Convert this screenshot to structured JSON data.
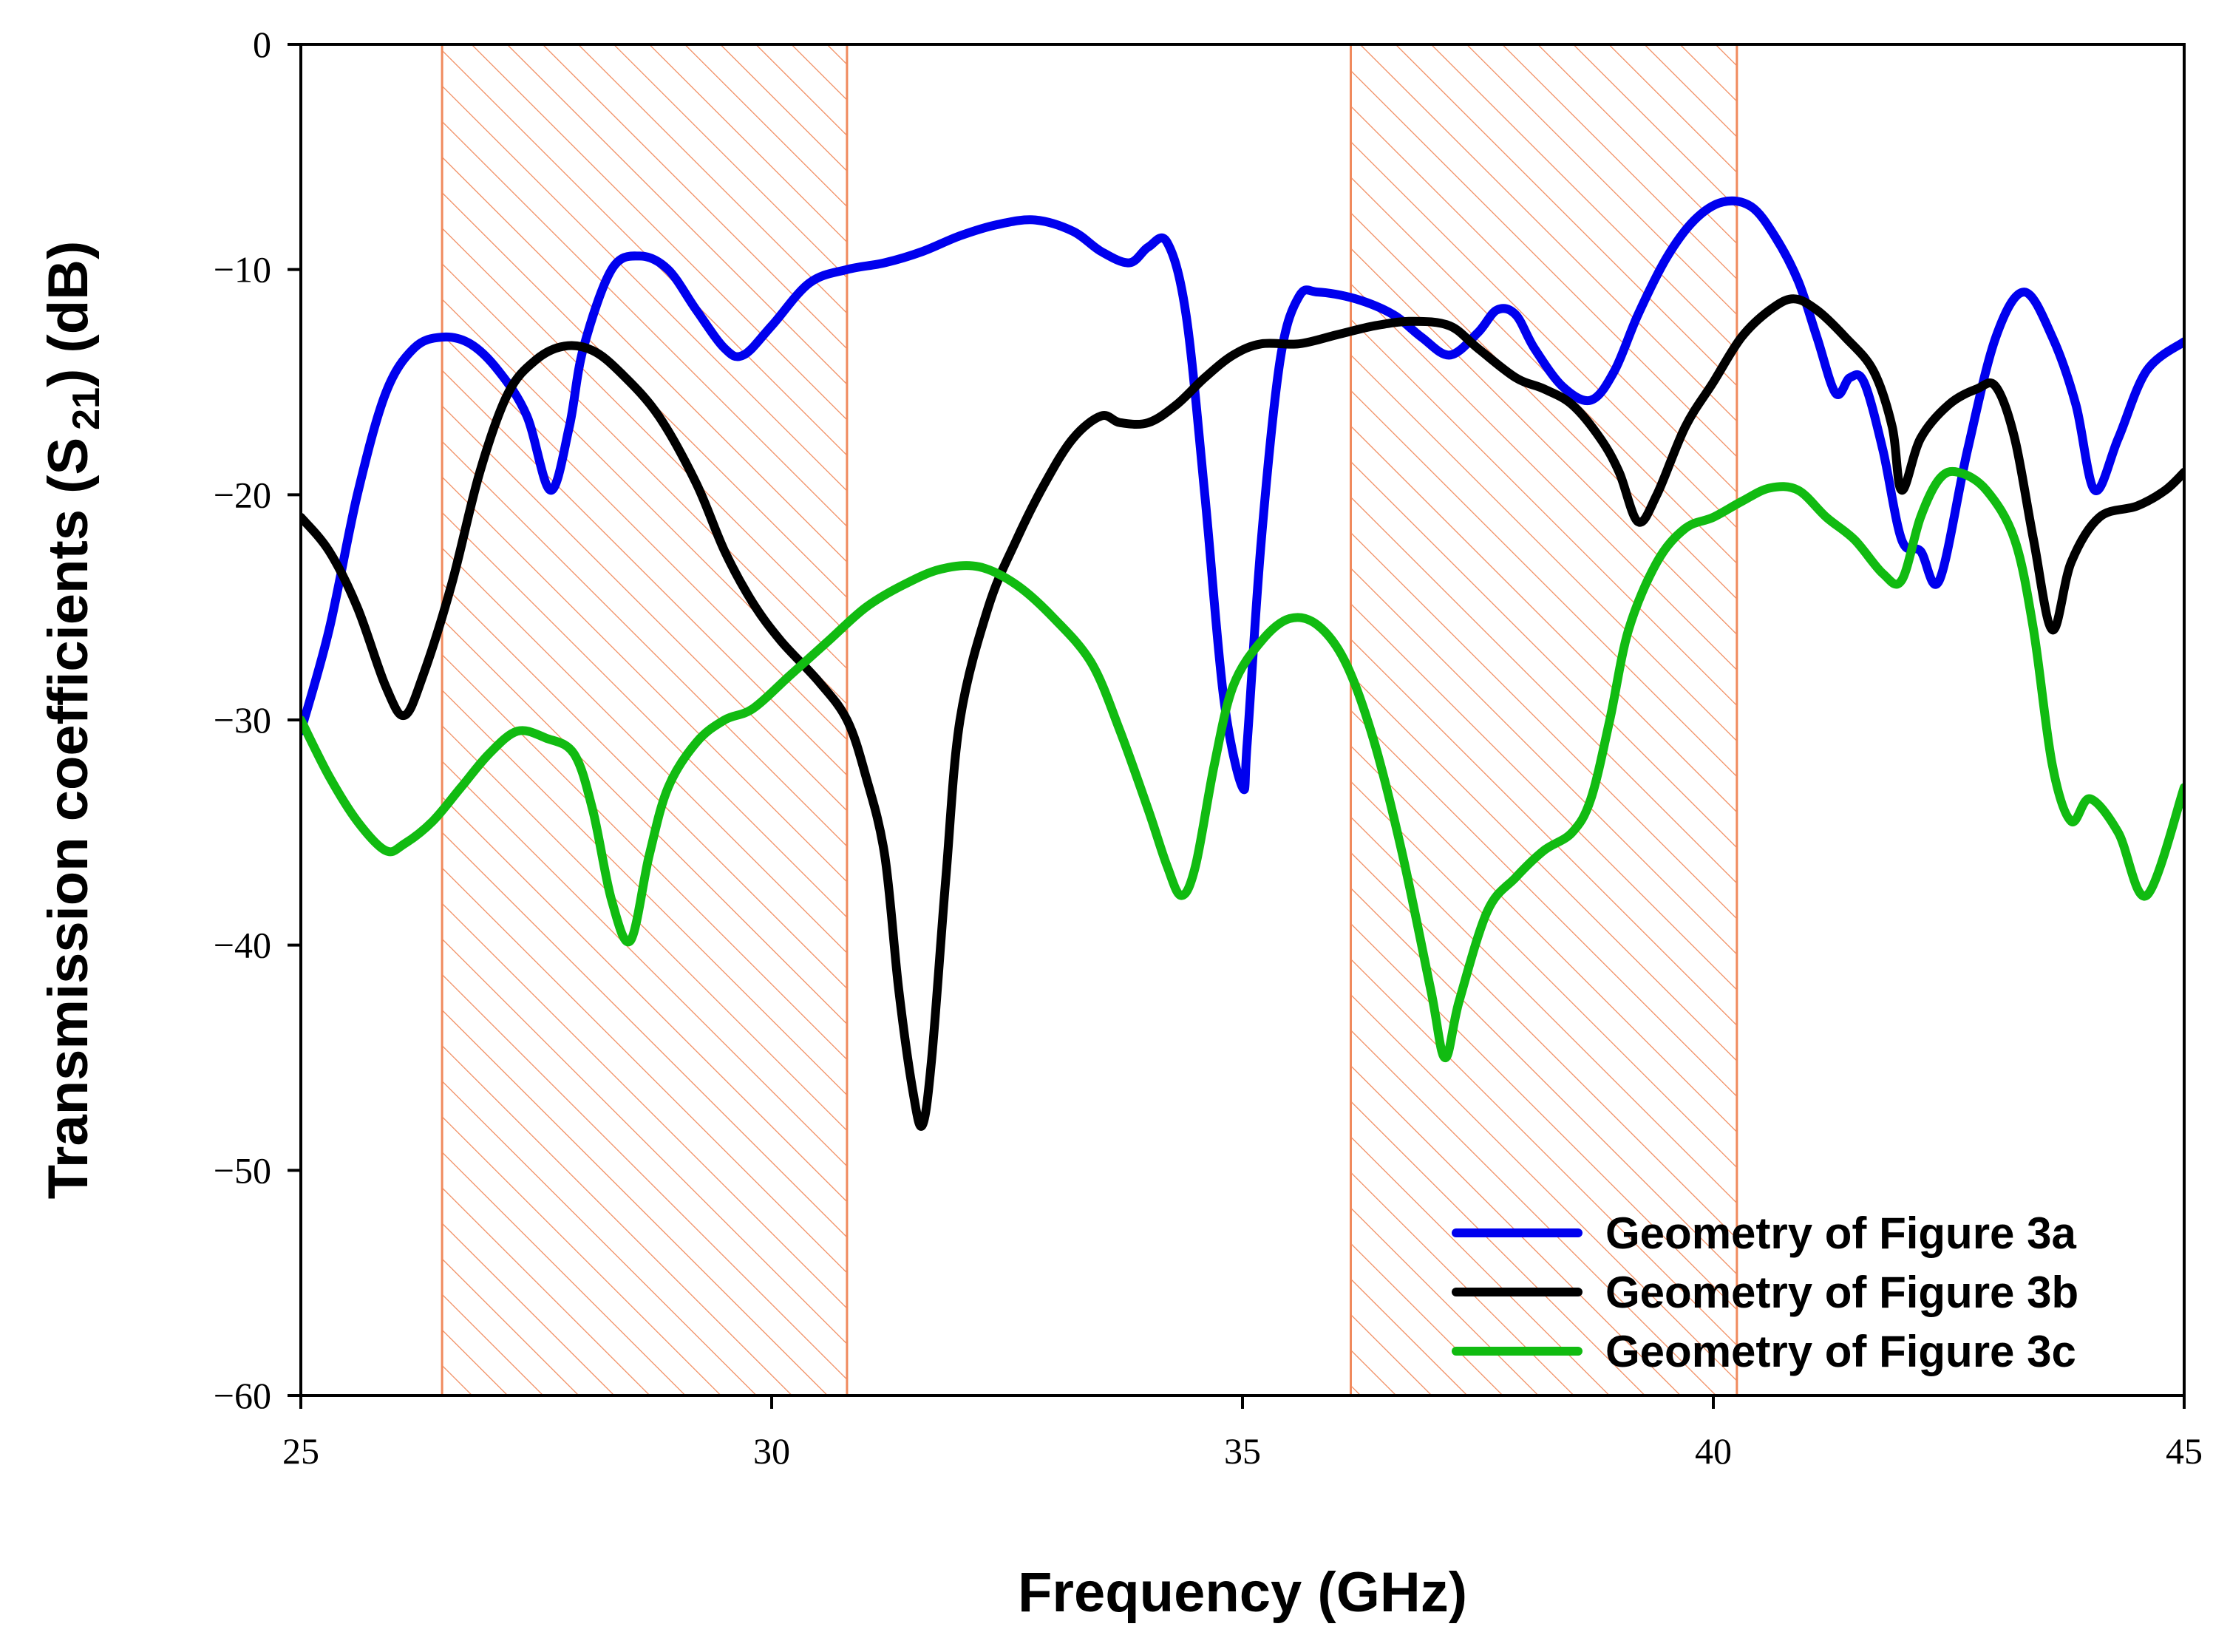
{
  "chart_data": {
    "type": "line",
    "title": "",
    "xlabel": "Frequency (GHz)",
    "ylabel": "Transmission coefficients (S",
    "ylabel_subscript": "21",
    "ylabel_suffix": ") (dB)",
    "xlim": [
      25,
      45
    ],
    "ylim": [
      -60,
      0
    ],
    "xticks": [
      25,
      30,
      35,
      40,
      45
    ],
    "yticks": [
      0,
      -10,
      -20,
      -30,
      -40,
      -50,
      -60
    ],
    "xtick_labels": [
      "25",
      "30",
      "35",
      "40",
      "45"
    ],
    "ytick_labels": [
      "0",
      "−10",
      "−20",
      "−30",
      "−40",
      "−50",
      "−60"
    ],
    "grid": false,
    "legend_position": "bottom-right",
    "shaded_bands": [
      {
        "x_start": 26.5,
        "x_end": 30.8,
        "color": "#F08A5D",
        "pattern": "diagonal-hatch"
      },
      {
        "x_start": 36.15,
        "x_end": 40.25,
        "color": "#F08A5D",
        "pattern": "diagonal-hatch"
      }
    ],
    "series": [
      {
        "name": "Geometry of Figure 3a",
        "color": "#0000EE",
        "x": [
          25.0,
          25.3,
          25.6,
          25.9,
          26.2,
          26.5,
          26.8,
          27.1,
          27.4,
          27.65,
          27.85,
          28.0,
          28.3,
          28.6,
          28.9,
          29.2,
          29.5,
          29.7,
          30.0,
          30.4,
          30.8,
          31.2,
          31.6,
          32.0,
          32.4,
          32.8,
          33.2,
          33.5,
          33.8,
          34.0,
          34.2,
          34.4,
          34.6,
          34.8,
          35.0,
          35.05,
          35.2,
          35.4,
          35.6,
          35.8,
          36.2,
          36.6,
          36.9,
          37.2,
          37.5,
          37.7,
          37.9,
          38.1,
          38.4,
          38.7,
          38.95,
          39.2,
          39.5,
          39.8,
          40.1,
          40.4,
          40.65,
          40.9,
          41.1,
          41.3,
          41.45,
          41.6,
          41.8,
          42.0,
          42.2,
          42.4,
          42.7,
          43.0,
          43.3,
          43.6,
          43.85,
          44.05,
          44.3,
          44.6,
          45.0
        ],
        "values": [
          -30.5,
          -26.0,
          -20.0,
          -15.5,
          -13.5,
          -13.0,
          -13.3,
          -14.5,
          -16.5,
          -19.8,
          -17.0,
          -13.5,
          -10.0,
          -9.4,
          -10.0,
          -11.8,
          -13.5,
          -13.8,
          -12.5,
          -10.6,
          -10.0,
          -9.7,
          -9.2,
          -8.5,
          -8.0,
          -7.8,
          -8.3,
          -9.2,
          -9.7,
          -9.0,
          -8.8,
          -12.0,
          -20.0,
          -29.0,
          -33.0,
          -31.0,
          -22.0,
          -14.0,
          -11.2,
          -11.0,
          -11.3,
          -12.0,
          -13.0,
          -13.8,
          -12.8,
          -11.8,
          -12.0,
          -13.5,
          -15.2,
          -15.8,
          -14.5,
          -12.0,
          -9.5,
          -7.8,
          -7.0,
          -7.2,
          -8.5,
          -10.5,
          -13.0,
          -15.5,
          -14.8,
          -15.0,
          -18.0,
          -22.0,
          -22.5,
          -23.8,
          -18.0,
          -13.0,
          -11.0,
          -13.0,
          -16.0,
          -19.8,
          -17.5,
          -14.5,
          -13.2
        ]
      },
      {
        "name": "Geometry of Figure 3b",
        "color": "#000000",
        "x": [
          25.0,
          25.3,
          25.6,
          25.9,
          26.1,
          26.3,
          26.6,
          26.9,
          27.2,
          27.5,
          27.8,
          28.1,
          28.4,
          28.8,
          29.2,
          29.5,
          29.8,
          30.1,
          30.5,
          30.8,
          31.0,
          31.2,
          31.35,
          31.5,
          31.6,
          31.7,
          31.85,
          32.0,
          32.3,
          32.6,
          32.9,
          33.2,
          33.5,
          33.7,
          34.0,
          34.3,
          34.6,
          34.9,
          35.2,
          35.6,
          36.0,
          36.4,
          36.8,
          37.2,
          37.5,
          37.9,
          38.2,
          38.5,
          38.8,
          39.0,
          39.2,
          39.4,
          39.7,
          40.0,
          40.3,
          40.6,
          40.85,
          41.1,
          41.4,
          41.7,
          41.9,
          42.0,
          42.2,
          42.5,
          42.8,
          43.0,
          43.2,
          43.4,
          43.6,
          43.8,
          44.1,
          44.5,
          44.8,
          45.0
        ],
        "values": [
          -21.0,
          -22.5,
          -25.0,
          -28.5,
          -29.8,
          -28.0,
          -24.0,
          -19.0,
          -15.5,
          -14.0,
          -13.4,
          -13.6,
          -14.6,
          -16.5,
          -19.5,
          -22.5,
          -24.8,
          -26.5,
          -28.3,
          -30.0,
          -32.5,
          -36.0,
          -42.0,
          -46.5,
          -48.0,
          -45.0,
          -37.0,
          -30.0,
          -25.0,
          -22.0,
          -19.5,
          -17.5,
          -16.5,
          -16.8,
          -16.8,
          -16.0,
          -14.8,
          -13.8,
          -13.3,
          -13.3,
          -12.9,
          -12.5,
          -12.3,
          -12.5,
          -13.5,
          -14.8,
          -15.3,
          -16.0,
          -17.5,
          -19.0,
          -21.2,
          -20.0,
          -17.0,
          -15.0,
          -13.0,
          -11.8,
          -11.3,
          -11.8,
          -13.0,
          -14.5,
          -17.0,
          -19.8,
          -17.5,
          -16.0,
          -15.3,
          -15.2,
          -17.5,
          -22.0,
          -26.0,
          -23.0,
          -21.0,
          -20.5,
          -19.8,
          -19.0
        ]
      },
      {
        "name": "Geometry of Figure 3c",
        "color": "#11BB11",
        "x": [
          25.0,
          25.3,
          25.6,
          25.9,
          26.1,
          26.4,
          26.7,
          27.0,
          27.3,
          27.6,
          27.9,
          28.1,
          28.3,
          28.5,
          28.7,
          28.9,
          29.2,
          29.5,
          29.8,
          30.2,
          30.6,
          31.0,
          31.4,
          31.8,
          32.2,
          32.6,
          33.0,
          33.4,
          33.7,
          34.0,
          34.2,
          34.35,
          34.5,
          34.7,
          34.9,
          35.2,
          35.5,
          35.8,
          36.1,
          36.4,
          36.7,
          37.0,
          37.15,
          37.3,
          37.6,
          37.9,
          38.2,
          38.5,
          38.7,
          38.9,
          39.1,
          39.4,
          39.7,
          40.0,
          40.3,
          40.6,
          40.9,
          41.2,
          41.5,
          41.8,
          42.0,
          42.2,
          42.4,
          42.6,
          42.9,
          43.2,
          43.4,
          43.6,
          43.8,
          44.0,
          44.3,
          44.6,
          45.0
        ],
        "values": [
          -30.0,
          -32.5,
          -34.5,
          -35.8,
          -35.5,
          -34.5,
          -33.0,
          -31.5,
          -30.5,
          -30.8,
          -31.5,
          -34.0,
          -38.0,
          -39.8,
          -36.0,
          -33.0,
          -31.0,
          -30.0,
          -29.5,
          -28.0,
          -26.5,
          -25.0,
          -24.0,
          -23.3,
          -23.2,
          -24.0,
          -25.5,
          -27.5,
          -30.5,
          -34.0,
          -36.5,
          -37.8,
          -36.5,
          -32.0,
          -28.5,
          -26.5,
          -25.5,
          -25.8,
          -27.5,
          -31.0,
          -36.0,
          -42.0,
          -45.0,
          -42.5,
          -38.5,
          -37.0,
          -35.8,
          -35.0,
          -33.5,
          -30.0,
          -26.0,
          -23.0,
          -21.5,
          -21.0,
          -20.3,
          -19.7,
          -19.8,
          -21.0,
          -22.0,
          -23.5,
          -23.8,
          -21.0,
          -19.3,
          -19.0,
          -19.8,
          -22.0,
          -26.0,
          -32.0,
          -34.5,
          -33.5,
          -35.0,
          -37.8,
          -33.0
        ]
      }
    ]
  }
}
